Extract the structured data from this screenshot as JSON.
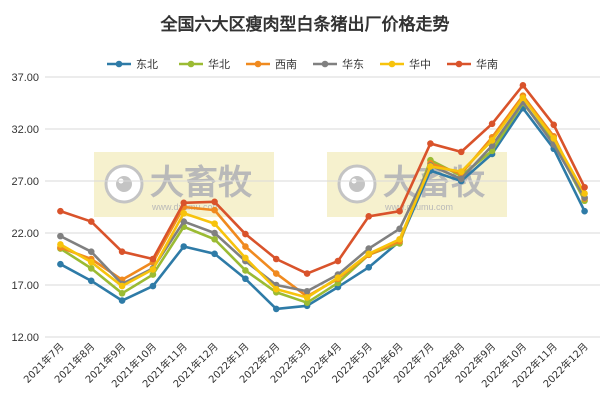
{
  "chart_data": {
    "type": "line",
    "title": "全国六大区瘦肉型白条猪出厂价格走势",
    "xlabel": "",
    "ylabel": "",
    "ylim": [
      12.0,
      37.0
    ],
    "yticks": [
      "12.00",
      "17.00",
      "22.00",
      "27.00",
      "32.00",
      "37.00"
    ],
    "grid": true,
    "legend_position": "top",
    "categories": [
      "2021年7月",
      "2021年8月",
      "2021年9月",
      "2021年10月",
      "2021年11月",
      "2021年12月",
      "2022年1月",
      "2022年2月",
      "2022年3月",
      "2022年4月",
      "2022年5月",
      "2022年6月",
      "2022年7月",
      "2022年8月",
      "2022年9月",
      "2022年10月",
      "2022年11月",
      "2022年12月"
    ],
    "series": [
      {
        "name": "东北",
        "color": "#2e7ba7",
        "values": [
          19.0,
          17.4,
          15.5,
          16.9,
          20.7,
          20.0,
          17.6,
          14.7,
          15.0,
          16.8,
          18.7,
          21.2,
          28.0,
          27.0,
          29.6,
          34.0,
          30.1,
          24.1
        ]
      },
      {
        "name": "华北",
        "color": "#9bbb33",
        "values": [
          20.5,
          18.6,
          16.2,
          18.0,
          22.6,
          21.4,
          18.4,
          16.3,
          15.3,
          17.2,
          19.9,
          21.0,
          29.0,
          27.5,
          29.9,
          34.5,
          30.8,
          25.1
        ]
      },
      {
        "name": "西南",
        "color": "#f08a1f",
        "values": [
          20.6,
          19.5,
          17.5,
          19.2,
          24.5,
          24.2,
          20.7,
          18.1,
          15.9,
          17.6,
          19.9,
          21.2,
          28.7,
          27.7,
          31.2,
          35.2,
          31.3,
          25.3
        ]
      },
      {
        "name": "华东",
        "color": "#808080",
        "values": [
          21.7,
          20.2,
          17.1,
          18.6,
          23.1,
          22.0,
          19.3,
          17.0,
          16.4,
          18.0,
          20.5,
          22.4,
          28.5,
          27.2,
          30.4,
          34.6,
          30.5,
          25.4
        ]
      },
      {
        "name": "华中",
        "color": "#f7c30c",
        "values": [
          20.9,
          19.2,
          16.9,
          18.5,
          23.9,
          22.9,
          19.6,
          16.6,
          15.8,
          17.7,
          20.0,
          21.4,
          28.4,
          27.9,
          30.9,
          35.0,
          31.1,
          25.8
        ]
      },
      {
        "name": "华南",
        "color": "#d9532b",
        "values": [
          24.1,
          23.1,
          20.2,
          19.5,
          24.9,
          25.0,
          21.9,
          19.5,
          18.1,
          19.3,
          23.6,
          24.1,
          30.6,
          29.8,
          32.5,
          36.2,
          32.4,
          26.4
        ]
      }
    ]
  },
  "watermark": {
    "brand": "大畜牧",
    "url": "www.dxumu.com",
    "icon": "eye-logo-icon"
  }
}
